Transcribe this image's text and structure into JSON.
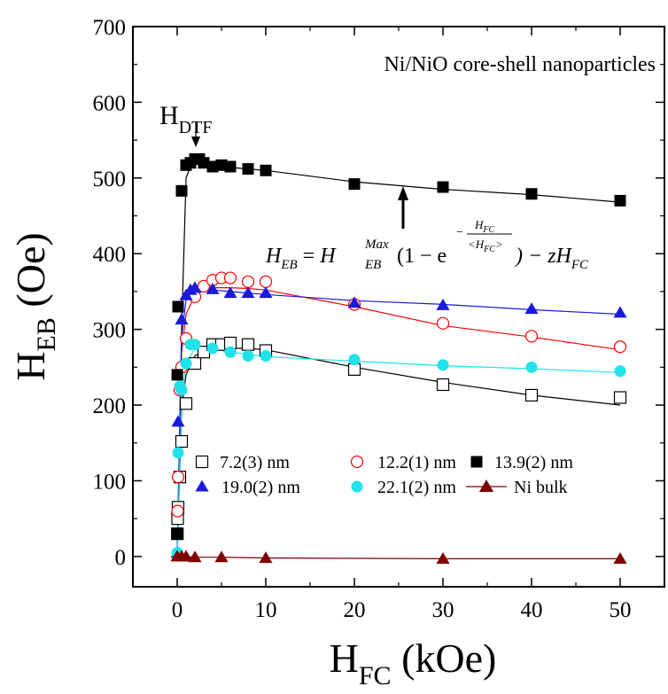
{
  "chart_data": {
    "type": "scatter",
    "title": "Ni/NiO core-shell nanoparticles",
    "xlabel": {
      "main": "H",
      "sub": "FC",
      "unit": " (kOe)"
    },
    "ylabel": {
      "main": "H",
      "sub": "EB",
      "unit": " (Oe)"
    },
    "xlim": [
      -5,
      55
    ],
    "ylim": [
      -40,
      700
    ],
    "xticks": [
      0,
      10,
      20,
      30,
      40,
      50
    ],
    "yticks": [
      0,
      100,
      200,
      300,
      400,
      500,
      600,
      700
    ],
    "annotation_dtf": {
      "main": "H",
      "sub": "DTF"
    },
    "formula": {
      "lhs": "H",
      "lhs_sub": "EB",
      "eq": " = ",
      "term": "H",
      "term_sub": "EB",
      "term_sup": "Max",
      "open": "(1 − e",
      "exp_minus": "−",
      "exp_num": "H",
      "exp_num_sub": "FC",
      "exp_den": "<H",
      "exp_den_sub": "FC",
      "exp_den_close": ">",
      "close": ") − zH",
      "close_sub": "FC"
    },
    "series": [
      {
        "name": "7.2(3) nm",
        "marker": "square-open",
        "color": "#000000",
        "x": [
          0.02,
          0.05,
          0.1,
          0.3,
          0.5,
          1,
          2,
          3,
          4,
          5,
          6,
          8,
          10,
          20,
          30,
          40,
          50
        ],
        "y": [
          30,
          50,
          65,
          105,
          152,
          202,
          255,
          270,
          280,
          280,
          282,
          280,
          272,
          247,
          227,
          213,
          210
        ],
        "fit_x": [
          0,
          0.5,
          1,
          2,
          3,
          4,
          5,
          6,
          8,
          10,
          20,
          30,
          40,
          50
        ],
        "fit_y": [
          0,
          195,
          240,
          265,
          270,
          273,
          275,
          275,
          275,
          273,
          250,
          230,
          213,
          200
        ]
      },
      {
        "name": "12.2(1) nm",
        "marker": "circle-open",
        "color": "#ff0000",
        "x": [
          0.05,
          0.1,
          0.3,
          0.5,
          1,
          2,
          3,
          4,
          5,
          6,
          8,
          10,
          20,
          30,
          40,
          50
        ],
        "y": [
          60,
          105,
          220,
          250,
          288,
          343,
          357,
          365,
          368,
          368,
          363,
          363,
          333,
          308,
          291,
          277
        ],
        "fit_x": [
          0,
          0.5,
          1,
          2,
          3,
          4,
          5,
          6,
          8,
          10,
          20,
          30,
          40,
          50
        ],
        "fit_y": [
          0,
          270,
          320,
          345,
          352,
          355,
          355,
          355,
          354,
          352,
          330,
          305,
          290,
          273
        ]
      },
      {
        "name": "13.9(2) nm",
        "marker": "square-filled",
        "color": "#000000",
        "x": [
          0,
          0.01,
          0.1,
          0.5,
          1,
          1.5,
          2,
          2.5,
          3,
          4,
          5,
          6,
          8,
          10,
          20,
          30,
          40,
          50
        ],
        "y": [
          30,
          240,
          330,
          483,
          517,
          520,
          525,
          525,
          520,
          515,
          517,
          515,
          512,
          510,
          492,
          488,
          479,
          470
        ],
        "fit_x": [
          0,
          0.5,
          1,
          1.5,
          2,
          3,
          4,
          5,
          6,
          8,
          10,
          20,
          30,
          40,
          50
        ],
        "fit_y": [
          0,
          300,
          500,
          515,
          520,
          520,
          518,
          516,
          514,
          512,
          510,
          495,
          485,
          478,
          468
        ]
      },
      {
        "name": "19.0(2) nm",
        "marker": "triangle-filled",
        "color": "#1a1adc",
        "x": [
          0.02,
          0.1,
          0.5,
          1,
          1.5,
          2,
          4,
          6,
          8,
          10,
          20,
          30,
          40,
          50
        ],
        "y": [
          5,
          178,
          313,
          345,
          352,
          355,
          353,
          348,
          348,
          348,
          335,
          332,
          327,
          322
        ],
        "fit_x": [
          0,
          0.5,
          1,
          1.5,
          2,
          3,
          4,
          6,
          8,
          10,
          20,
          30,
          40,
          50
        ],
        "fit_y": [
          0,
          290,
          340,
          352,
          355,
          354,
          352,
          350,
          348,
          346,
          338,
          333,
          326,
          320
        ]
      },
      {
        "name": "22.1(2) nm",
        "marker": "circle-filled",
        "color": "#1fe3e8",
        "x": [
          0.02,
          0.1,
          0.3,
          0.5,
          1,
          1.5,
          2,
          4,
          6,
          8,
          10,
          20,
          30,
          40,
          50
        ],
        "y": [
          5,
          137,
          225,
          220,
          255,
          280,
          280,
          275,
          270,
          265,
          265,
          260,
          253,
          250,
          245
        ],
        "fit_x": [
          0,
          0.5,
          1,
          2,
          3,
          4,
          6,
          8,
          10,
          20,
          30,
          40,
          50
        ],
        "fit_y": [
          0,
          210,
          255,
          275,
          276,
          274,
          270,
          267,
          264,
          258,
          252,
          248,
          243
        ]
      },
      {
        "name": "Ni bulk",
        "marker": "triangle-filled",
        "color": "#800000",
        "x": [
          0,
          0.5,
          1,
          2,
          5,
          10,
          30,
          50
        ],
        "y": [
          0,
          0,
          0,
          -1,
          -1,
          -2,
          -3,
          -3
        ],
        "fit_x": [
          0,
          0.5,
          1,
          2,
          5,
          10,
          30,
          50
        ],
        "fit_y": [
          0,
          0,
          0,
          -1,
          -1,
          -2,
          -3,
          -3
        ]
      }
    ]
  }
}
